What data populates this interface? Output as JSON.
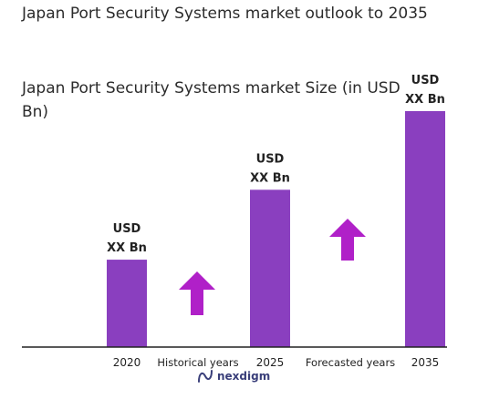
{
  "header": {
    "title": "Japan Port Security Systems market outlook to 2035",
    "subtitle": "Japan Port Security Systems market Size (in USD Bn)"
  },
  "brand": {
    "name": "nexdigm",
    "logo_icon": "nexdigm-logo-icon"
  },
  "colors": {
    "bar": "#8a3fbf",
    "arrow": "#b020c8",
    "axis": "#222222",
    "text": "#222222"
  },
  "chart_data": {
    "type": "bar",
    "title": "Japan Port Security Systems market Size (in USD Bn)",
    "categories": [
      "2020",
      "2025",
      "2035"
    ],
    "values": [
      1,
      1.8,
      2.7
    ],
    "value_labels": [
      [
        "USD",
        "XX Bn"
      ],
      [
        "USD",
        "XX Bn"
      ],
      [
        "USD",
        "XX Bn"
      ]
    ],
    "ylim": [
      0,
      3
    ],
    "grid": false,
    "annotations": [
      {
        "text": "Historical years",
        "between": [
          "2020",
          "2025"
        ],
        "icon": "up-arrow-icon"
      },
      {
        "text": "Forecasted years",
        "between": [
          "2025",
          "2035"
        ],
        "icon": "up-arrow-icon"
      }
    ]
  }
}
